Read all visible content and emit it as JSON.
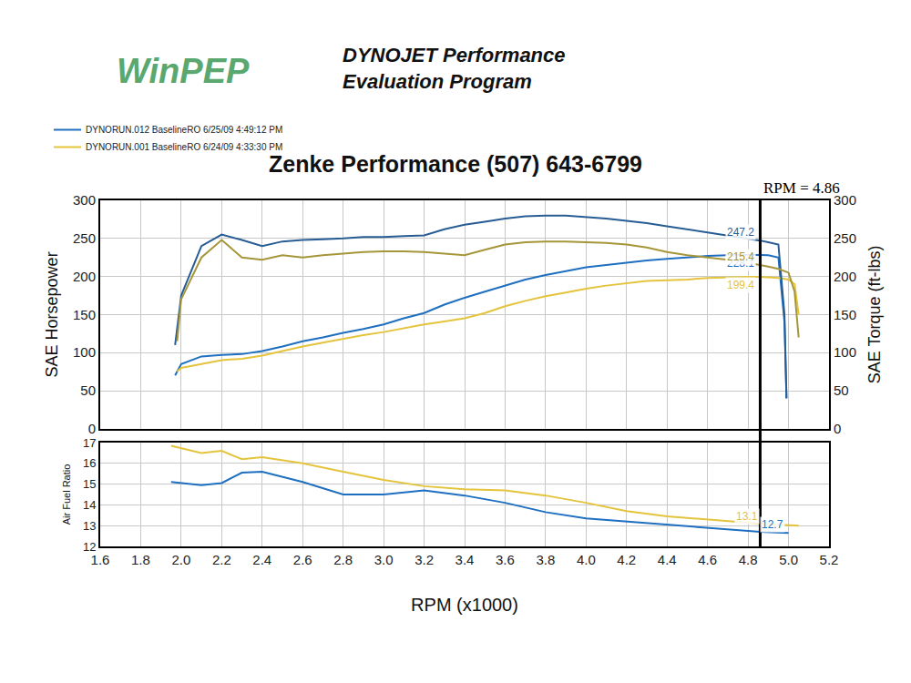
{
  "chart_data": {
    "type": "line",
    "logo": "WinPEP",
    "subtitle": "DYNOJET Performance Evaluation Program",
    "title": "Zenke Performance (507) 643-6799",
    "x_label": "RPM (x1000)",
    "y_label": "SAE Horsepower",
    "y2_label": "SAE Torque (ft-lbs)",
    "y3_label": "Air Fuel Ratio",
    "xlim": [
      1.6,
      5.2
    ],
    "xticks": [
      1.6,
      1.8,
      {
        "value": 2,
        "label": "2.0"
      },
      2.2,
      2.4,
      2.6,
      2.8,
      {
        "value": 3,
        "label": "3.0"
      },
      3.2,
      3.4,
      3.6,
      3.8,
      {
        "value": 4,
        "label": "4.0"
      },
      4.2,
      4.4,
      4.6,
      4.8,
      {
        "value": 5,
        "label": "5.0"
      },
      5.2
    ],
    "ylim": [
      0,
      300
    ],
    "yticks": [
      0,
      50,
      100,
      150,
      200,
      250,
      300
    ],
    "y2lim": [
      0,
      300
    ],
    "y2ticks": [
      0,
      50,
      100,
      150,
      200,
      250,
      300
    ],
    "y3lim": [
      12,
      17
    ],
    "y3ticks": [
      12,
      13,
      14,
      15,
      16,
      17
    ],
    "grid": true,
    "legend": "top left",
    "cursor": {
      "x": 4.86,
      "label": "RPM = 4.86"
    },
    "series": [
      {
        "name": "DYNORUN.012 BaselineRO 6/25/09 4:49:12 PM",
        "color": "#1f6fc0",
        "axis": "y",
        "x": [
          1.97,
          2.0,
          2.1,
          2.2,
          2.3,
          2.4,
          2.5,
          2.6,
          2.7,
          2.8,
          2.9,
          3.0,
          3.1,
          3.2,
          3.3,
          3.4,
          3.5,
          3.6,
          3.7,
          3.8,
          3.9,
          4.0,
          4.1,
          4.2,
          4.3,
          4.4,
          4.5,
          4.6,
          4.7,
          4.8,
          4.86,
          4.9,
          4.95,
          4.98,
          4.99
        ],
        "values": [
          70,
          85,
          95,
          97,
          98,
          102,
          108,
          115,
          120,
          126,
          131,
          137,
          145,
          152,
          163,
          172,
          180,
          188,
          196,
          202,
          207,
          212,
          215,
          218,
          221,
          223,
          225,
          227,
          228,
          228.5,
          228.1,
          228,
          225,
          140,
          40
        ],
        "cursor_value": 228.1
      },
      {
        "name": "DYNORUN.012 BaselineRO 6/25/09 4:49:12 PM",
        "color": "#275d94",
        "axis": "y2",
        "x": [
          1.97,
          2.0,
          2.1,
          2.2,
          2.3,
          2.4,
          2.5,
          2.6,
          2.7,
          2.8,
          2.9,
          3.0,
          3.1,
          3.2,
          3.3,
          3.4,
          3.5,
          3.6,
          3.7,
          3.8,
          3.9,
          4.0,
          4.1,
          4.2,
          4.3,
          4.4,
          4.5,
          4.6,
          4.7,
          4.8,
          4.86,
          4.9,
          4.95,
          4.98,
          4.99
        ],
        "values": [
          110,
          175,
          240,
          255,
          248,
          240,
          246,
          248,
          249,
          250,
          252,
          252,
          253,
          254,
          262,
          268,
          272,
          276,
          279,
          280,
          280,
          278,
          276,
          273,
          270,
          266,
          262,
          258,
          254,
          250,
          247.2,
          245,
          242,
          150,
          40
        ],
        "cursor_value": 247.2
      },
      {
        "name": "DYNORUN.001 BaselineRO 6/24/09 4:33:30 PM",
        "color": "#e3c43c",
        "axis": "y",
        "x": [
          1.98,
          2.0,
          2.1,
          2.2,
          2.3,
          2.4,
          2.5,
          2.6,
          2.7,
          2.8,
          2.9,
          3.0,
          3.1,
          3.2,
          3.3,
          3.4,
          3.5,
          3.6,
          3.7,
          3.8,
          3.9,
          4.0,
          4.1,
          4.2,
          4.3,
          4.4,
          4.5,
          4.6,
          4.7,
          4.8,
          4.86,
          4.9,
          4.95,
          5.0,
          5.03,
          5.05
        ],
        "values": [
          75,
          80,
          85,
          90,
          92,
          96,
          102,
          108,
          113,
          118,
          123,
          127,
          132,
          137,
          141,
          145,
          152,
          161,
          168,
          174,
          179,
          184,
          188,
          191,
          194,
          195,
          196,
          198,
          199,
          199.5,
          199.4,
          199,
          198,
          196,
          190,
          150
        ],
        "cursor_value": 199.4
      },
      {
        "name": "DYNORUN.001 BaselineRO 6/24/09 4:33:30 PM",
        "color": "#a6963a",
        "axis": "y2",
        "x": [
          1.98,
          2.0,
          2.1,
          2.2,
          2.3,
          2.4,
          2.5,
          2.6,
          2.7,
          2.8,
          2.9,
          3.0,
          3.1,
          3.2,
          3.3,
          3.4,
          3.5,
          3.6,
          3.7,
          3.8,
          3.9,
          4.0,
          4.1,
          4.2,
          4.3,
          4.4,
          4.5,
          4.6,
          4.7,
          4.8,
          4.86,
          4.9,
          4.95,
          5.0,
          5.03,
          5.05
        ],
        "values": [
          115,
          170,
          225,
          248,
          225,
          222,
          228,
          225,
          228,
          230,
          232,
          233,
          233,
          232,
          230,
          228,
          235,
          242,
          245,
          246,
          246,
          245,
          244,
          242,
          238,
          232,
          228,
          225,
          222,
          218,
          215.4,
          213,
          210,
          205,
          180,
          120
        ],
        "cursor_value": 215.4
      },
      {
        "name": "DYNORUN.012 BaselineRO 6/25/09 4:49:12 PM",
        "color": "#1f6fc0",
        "axis": "y3",
        "x": [
          1.95,
          2.1,
          2.2,
          2.3,
          2.4,
          2.6,
          2.8,
          3.0,
          3.2,
          3.4,
          3.6,
          3.8,
          4.0,
          4.2,
          4.4,
          4.6,
          4.86,
          5.0
        ],
        "values": [
          15.1,
          14.95,
          15.05,
          15.55,
          15.6,
          15.1,
          14.5,
          14.5,
          14.7,
          14.45,
          14.1,
          13.65,
          13.35,
          13.2,
          13.05,
          12.9,
          12.7,
          12.65
        ],
        "cursor_value": 12.7
      },
      {
        "name": "DYNORUN.001 BaselineRO 6/24/09 4:33:30 PM",
        "color": "#e3c43c",
        "axis": "y3",
        "x": [
          1.95,
          2.1,
          2.2,
          2.3,
          2.4,
          2.6,
          2.8,
          3.0,
          3.2,
          3.4,
          3.6,
          3.8,
          4.0,
          4.2,
          4.4,
          4.6,
          4.86,
          5.05
        ],
        "values": [
          16.85,
          16.5,
          16.6,
          16.2,
          16.3,
          16.0,
          15.6,
          15.2,
          14.9,
          14.75,
          14.7,
          14.45,
          14.1,
          13.7,
          13.45,
          13.3,
          13.1,
          13.0
        ],
        "cursor_value": 13.1
      }
    ]
  }
}
